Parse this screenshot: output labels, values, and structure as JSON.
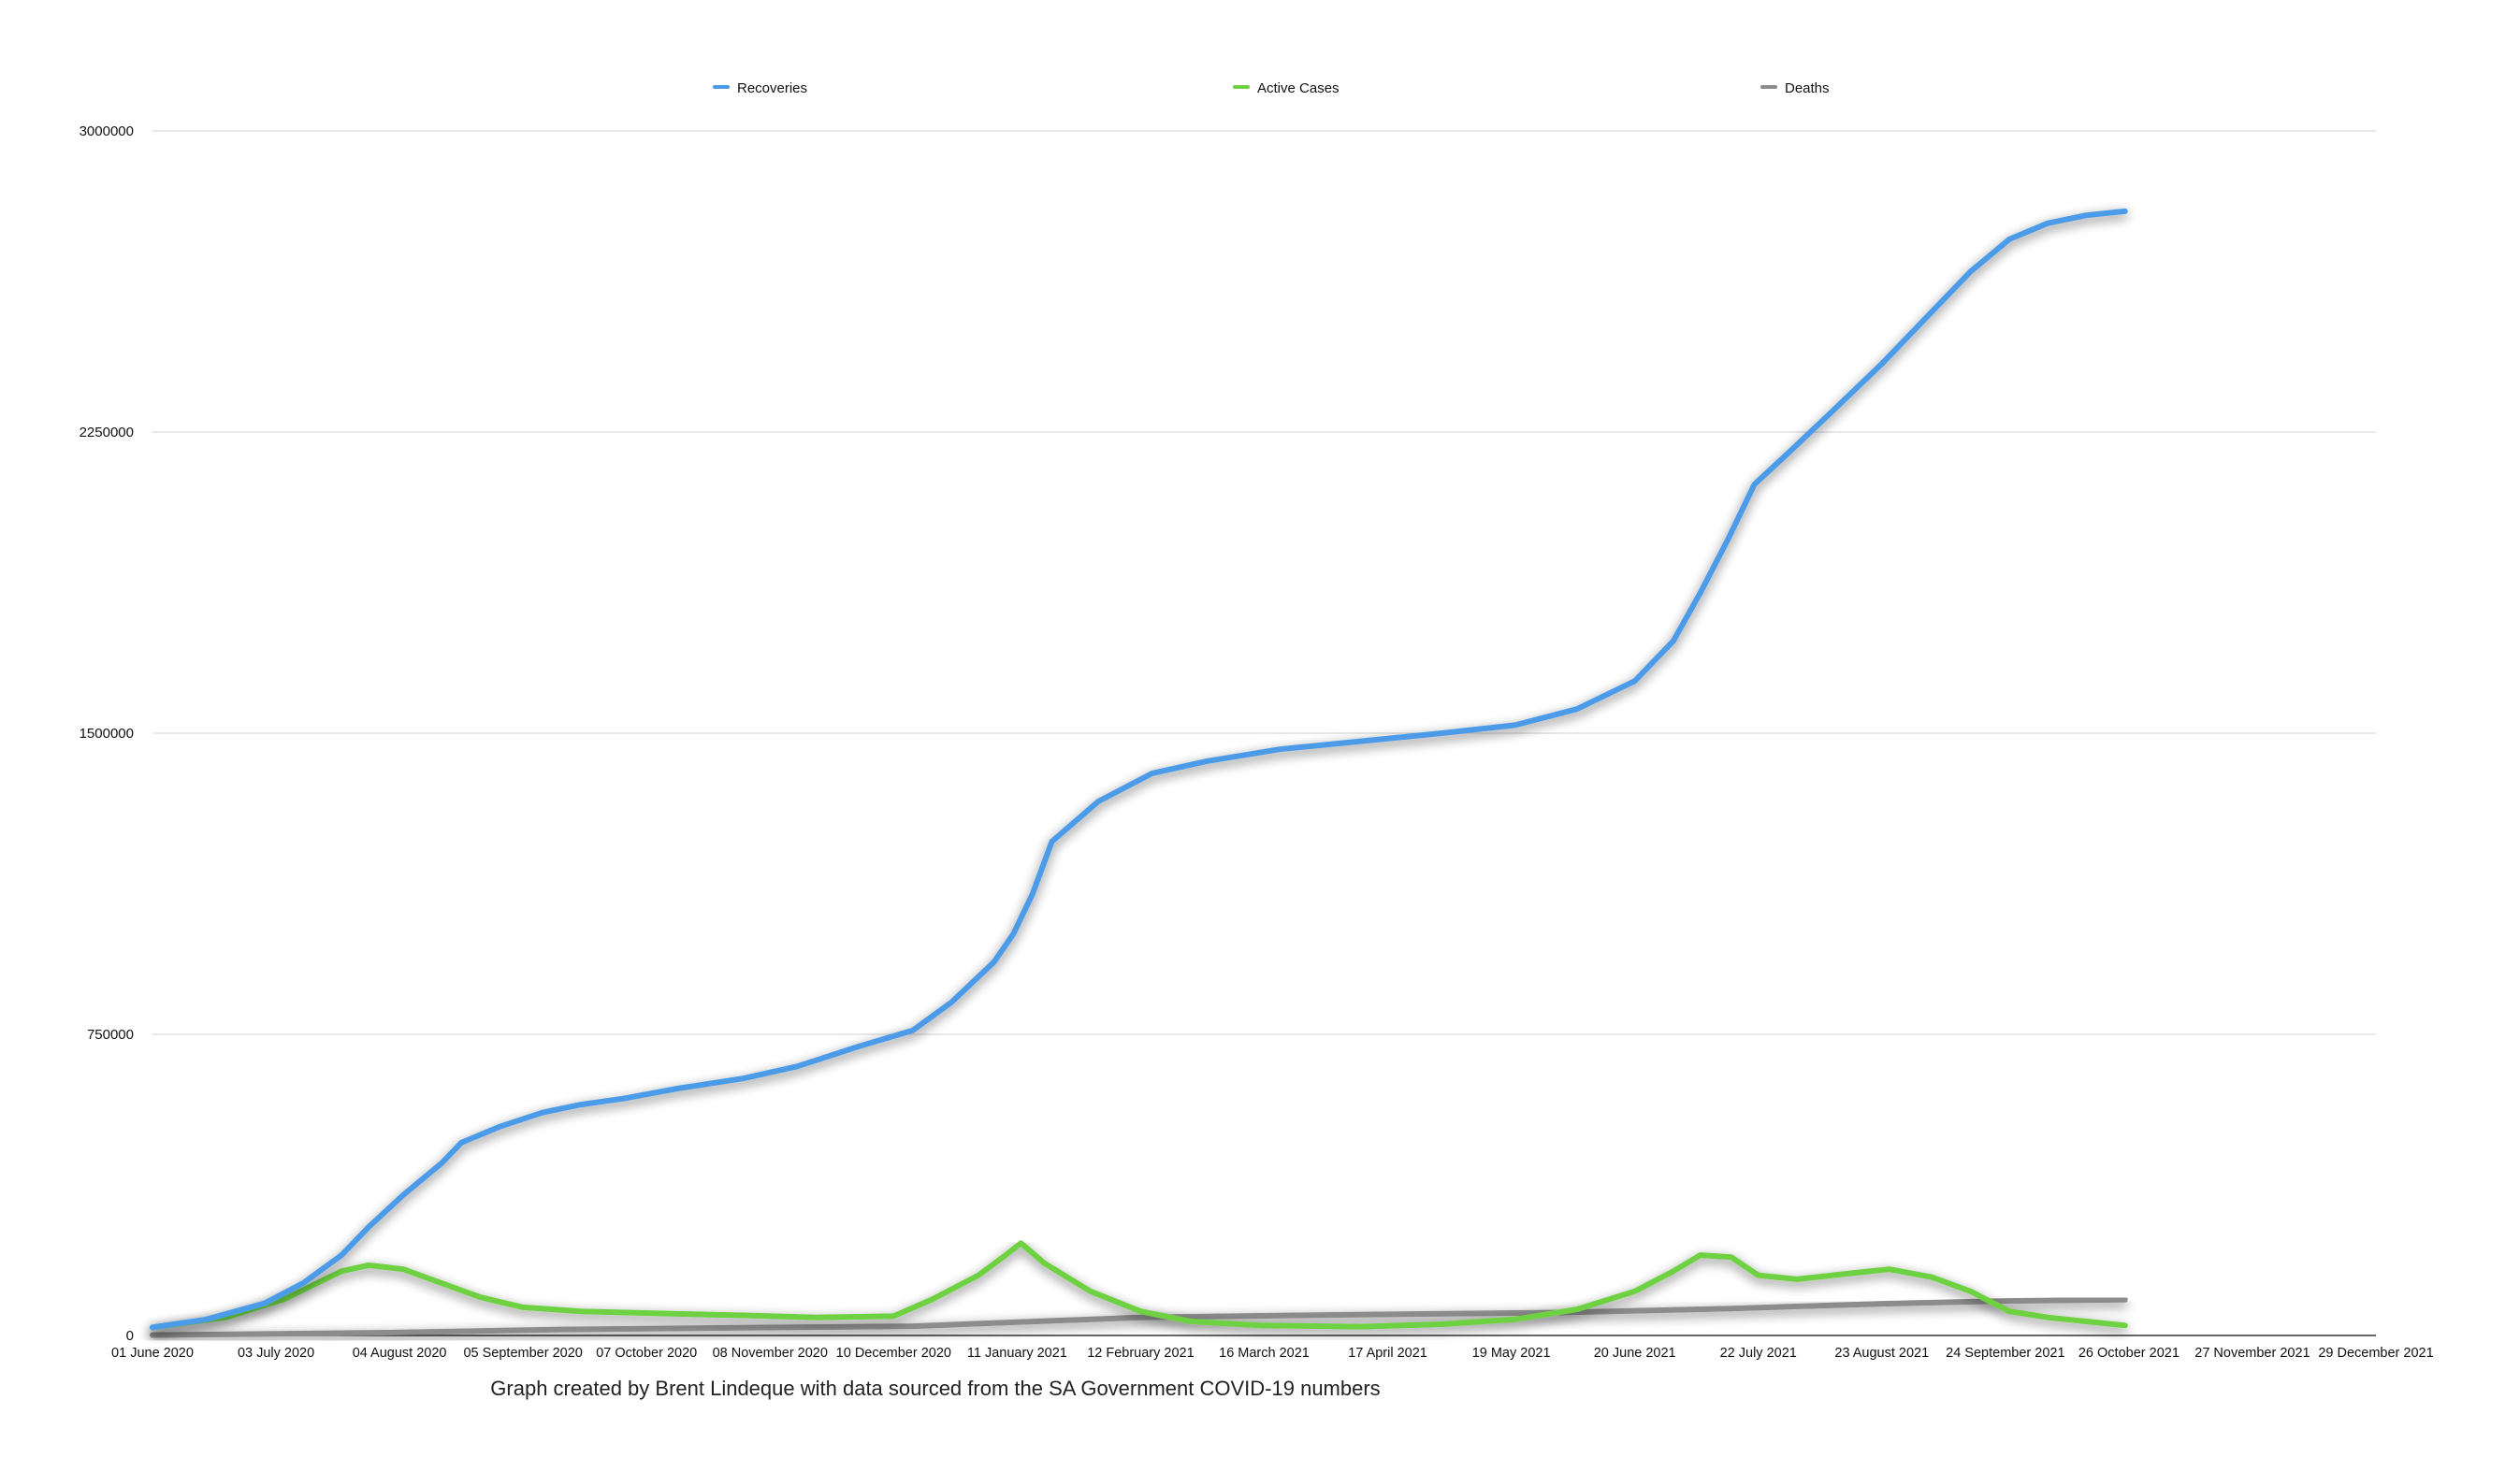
{
  "chart_data": {
    "type": "line",
    "title": "",
    "xlabel": "",
    "ylabel": "",
    "caption": "Graph created by Brent Lindeque with data sourced from the SA Government COVID-19 numbers",
    "ylim": [
      0,
      3000000
    ],
    "yticks": [
      "0",
      "750000",
      "1500000",
      "2250000",
      "3000000"
    ],
    "xlim": [
      "2020-06-01",
      "2021-12-29"
    ],
    "xticks": [
      {
        "date": "2020-06-01",
        "label": "01 June 2020"
      },
      {
        "date": "2020-07-03",
        "label": "03 July 2020"
      },
      {
        "date": "2020-08-04",
        "label": "04 August 2020"
      },
      {
        "date": "2020-09-05",
        "label": "05 September 2020"
      },
      {
        "date": "2020-10-07",
        "label": "07 October 2020"
      },
      {
        "date": "2020-11-08",
        "label": "08 November 2020"
      },
      {
        "date": "2020-12-10",
        "label": "10 December 2020"
      },
      {
        "date": "2021-01-11",
        "label": "11 January 2021"
      },
      {
        "date": "2021-02-12",
        "label": "12 February 2021"
      },
      {
        "date": "2021-03-16",
        "label": "16 March 2021"
      },
      {
        "date": "2021-04-17",
        "label": "17 April 2021"
      },
      {
        "date": "2021-05-19",
        "label": "19 May 2021"
      },
      {
        "date": "2021-06-20",
        "label": "20 June 2021"
      },
      {
        "date": "2021-07-22",
        "label": "22 July 2021"
      },
      {
        "date": "2021-08-23",
        "label": "23 August 2021"
      },
      {
        "date": "2021-09-24",
        "label": "24 September 2021"
      },
      {
        "date": "2021-10-26",
        "label": "26 October 2021"
      },
      {
        "date": "2021-11-27",
        "label": "27 November 2021"
      },
      {
        "date": "2021-12-29",
        "label": "29 December 2021"
      }
    ],
    "grid": true,
    "legend_position": "top",
    "series": [
      {
        "name": "Recoveries",
        "color": "#4c9be8",
        "points": [
          [
            "2020-06-01",
            20000
          ],
          [
            "2020-06-15",
            40000
          ],
          [
            "2020-06-30",
            80000
          ],
          [
            "2020-07-10",
            130000
          ],
          [
            "2020-07-20",
            200000
          ],
          [
            "2020-07-27",
            270000
          ],
          [
            "2020-08-05",
            350000
          ],
          [
            "2020-08-15",
            430000
          ],
          [
            "2020-08-20",
            480000
          ],
          [
            "2020-08-30",
            520000
          ],
          [
            "2020-09-10",
            555000
          ],
          [
            "2020-09-20",
            575000
          ],
          [
            "2020-10-01",
            590000
          ],
          [
            "2020-10-15",
            615000
          ],
          [
            "2020-11-01",
            640000
          ],
          [
            "2020-11-15",
            670000
          ],
          [
            "2020-12-01",
            720000
          ],
          [
            "2020-12-15",
            760000
          ],
          [
            "2020-12-25",
            830000
          ],
          [
            "2021-01-05",
            930000
          ],
          [
            "2021-01-10",
            1000000
          ],
          [
            "2021-01-15",
            1100000
          ],
          [
            "2021-01-20",
            1230000
          ],
          [
            "2021-02-01",
            1330000
          ],
          [
            "2021-02-15",
            1400000
          ],
          [
            "2021-03-01",
            1430000
          ],
          [
            "2021-03-20",
            1460000
          ],
          [
            "2021-04-10",
            1480000
          ],
          [
            "2021-05-01",
            1500000
          ],
          [
            "2021-05-20",
            1520000
          ],
          [
            "2021-06-05",
            1560000
          ],
          [
            "2021-06-20",
            1630000
          ],
          [
            "2021-06-30",
            1730000
          ],
          [
            "2021-07-07",
            1850000
          ],
          [
            "2021-07-14",
            1980000
          ],
          [
            "2021-07-21",
            2120000
          ],
          [
            "2021-07-30",
            2200000
          ],
          [
            "2021-08-10",
            2300000
          ],
          [
            "2021-08-23",
            2420000
          ],
          [
            "2021-09-05",
            2550000
          ],
          [
            "2021-09-15",
            2650000
          ],
          [
            "2021-09-25",
            2730000
          ],
          [
            "2021-10-05",
            2770000
          ],
          [
            "2021-10-15",
            2790000
          ],
          [
            "2021-10-25",
            2800000
          ]
        ]
      },
      {
        "name": "Active Cases",
        "color": "#6dd143",
        "points": [
          [
            "2020-06-01",
            20000
          ],
          [
            "2020-06-20",
            45000
          ],
          [
            "2020-07-05",
            90000
          ],
          [
            "2020-07-20",
            160000
          ],
          [
            "2020-07-27",
            175000
          ],
          [
            "2020-08-05",
            165000
          ],
          [
            "2020-08-15",
            130000
          ],
          [
            "2020-08-25",
            95000
          ],
          [
            "2020-09-05",
            70000
          ],
          [
            "2020-09-20",
            60000
          ],
          [
            "2020-10-10",
            55000
          ],
          [
            "2020-11-01",
            50000
          ],
          [
            "2020-11-20",
            45000
          ],
          [
            "2020-12-10",
            48000
          ],
          [
            "2020-12-20",
            90000
          ],
          [
            "2021-01-01",
            150000
          ],
          [
            "2021-01-08",
            200000
          ],
          [
            "2021-01-12",
            230000
          ],
          [
            "2021-01-18",
            180000
          ],
          [
            "2021-01-30",
            110000
          ],
          [
            "2021-02-12",
            60000
          ],
          [
            "2021-02-25",
            35000
          ],
          [
            "2021-03-15",
            25000
          ],
          [
            "2021-04-10",
            22000
          ],
          [
            "2021-05-01",
            28000
          ],
          [
            "2021-05-20",
            40000
          ],
          [
            "2021-06-05",
            65000
          ],
          [
            "2021-06-20",
            110000
          ],
          [
            "2021-06-30",
            160000
          ],
          [
            "2021-07-07",
            200000
          ],
          [
            "2021-07-15",
            195000
          ],
          [
            "2021-07-22",
            150000
          ],
          [
            "2021-08-01",
            140000
          ],
          [
            "2021-08-15",
            155000
          ],
          [
            "2021-08-25",
            165000
          ],
          [
            "2021-09-05",
            145000
          ],
          [
            "2021-09-15",
            110000
          ],
          [
            "2021-09-25",
            60000
          ],
          [
            "2021-10-05",
            45000
          ],
          [
            "2021-10-15",
            35000
          ],
          [
            "2021-10-25",
            25000
          ]
        ]
      },
      {
        "name": "Deaths",
        "color": "#8c8c8c",
        "points": [
          [
            "2020-06-01",
            1000
          ],
          [
            "2020-08-01",
            7000
          ],
          [
            "2020-09-15",
            15000
          ],
          [
            "2020-11-01",
            19000
          ],
          [
            "2020-12-15",
            23000
          ],
          [
            "2021-01-11",
            33000
          ],
          [
            "2021-02-12",
            45000
          ],
          [
            "2021-04-01",
            51000
          ],
          [
            "2021-06-01",
            57000
          ],
          [
            "2021-07-15",
            67000
          ],
          [
            "2021-08-23",
            79000
          ],
          [
            "2021-09-24",
            86000
          ],
          [
            "2021-10-25",
            89000
          ]
        ]
      }
    ]
  }
}
